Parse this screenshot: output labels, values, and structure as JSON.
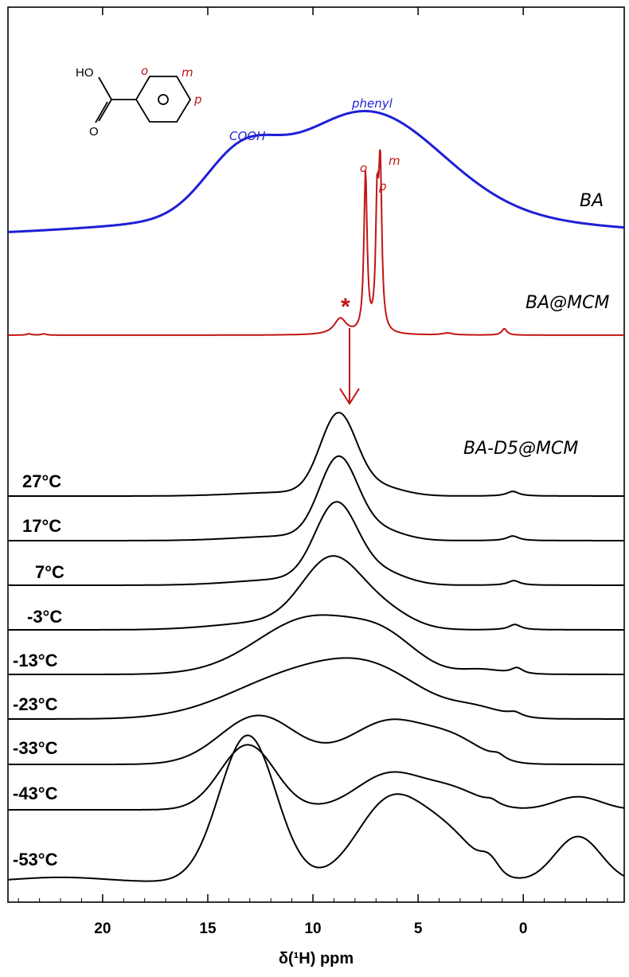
{
  "chart_data": {
    "type": "line",
    "xlabel": "δ(¹H) ppm",
    "xlim": [
      24.5,
      -4.8
    ],
    "x_reversed": true,
    "x_ticks": [
      "20",
      "15",
      "10",
      "5",
      "0"
    ],
    "colors": {
      "BA": "#1f1fd6",
      "BA@MCM": "#c01515",
      "BA-D5@MCM": "#000000"
    },
    "series_labels": {
      "BA": "BA",
      "BA@MCM": "BA@MCM",
      "BA-D5@MCM": "BA-D5@MCM"
    },
    "annotations": {
      "cooh": "COOH",
      "phenyl": "phenyl",
      "ortho": "o",
      "para": "p",
      "meta": "m",
      "asterisk": "*",
      "ho": "HO",
      "oxygen": "O",
      "ring_o": "o",
      "ring_m": "m",
      "ring_p": "p"
    },
    "series": [
      {
        "name": "BA",
        "peaks": [
          {
            "pos": 7.5,
            "amp": 0.78,
            "width": 3.6
          },
          {
            "pos": 13.5,
            "amp": 0.38,
            "width": 1.7
          },
          {
            "pos": 0,
            "amp": 0.0,
            "width": 1
          }
        ],
        "broad": {
          "amp": 0.18,
          "width": 9.5,
          "pos": 8.0
        }
      },
      {
        "name": "BA@MCM",
        "peaks": [
          {
            "pos": 7.5,
            "amp": 1.0,
            "width": 0.09
          },
          {
            "pos": 6.8,
            "amp": 1.0,
            "width": 0.09
          },
          {
            "pos": 6.95,
            "amp": 0.72,
            "width": 0.08
          },
          {
            "pos": 8.7,
            "amp": 0.1,
            "width": 0.35
          },
          {
            "pos": 0.9,
            "amp": 0.04,
            "width": 0.15
          },
          {
            "pos": 3.6,
            "amp": 0.012,
            "width": 0.3
          },
          {
            "pos": 23.5,
            "amp": 0.008,
            "width": 0.15
          },
          {
            "pos": 22.8,
            "amp": 0.008,
            "width": 0.15
          }
        ]
      }
    ],
    "temperatures": [
      {
        "label": "27°C",
        "peaks": [
          {
            "pos": 8.8,
            "amp": 1.0,
            "width": 0.85
          },
          {
            "pos": 7.0,
            "amp": 0.12,
            "width": 1.2
          },
          {
            "pos": 0.5,
            "amp": 0.06,
            "width": 0.35
          },
          {
            "pos": 11.0,
            "amp": 0.05,
            "width": 2.5
          }
        ]
      },
      {
        "label": "17°C",
        "peaks": [
          {
            "pos": 8.8,
            "amp": 1.0,
            "width": 0.9
          },
          {
            "pos": 7.0,
            "amp": 0.14,
            "width": 1.2
          },
          {
            "pos": 0.5,
            "amp": 0.06,
            "width": 0.35
          },
          {
            "pos": 11.0,
            "amp": 0.06,
            "width": 2.5
          }
        ]
      },
      {
        "label": "7°C",
        "peaks": [
          {
            "pos": 8.9,
            "amp": 1.0,
            "width": 1.0
          },
          {
            "pos": 6.8,
            "amp": 0.16,
            "width": 1.2
          },
          {
            "pos": 0.45,
            "amp": 0.06,
            "width": 0.35
          },
          {
            "pos": 11.0,
            "amp": 0.08,
            "width": 2.5
          }
        ]
      },
      {
        "label": "-3°C",
        "peaks": [
          {
            "pos": 9.1,
            "amp": 0.88,
            "width": 1.4
          },
          {
            "pos": 6.6,
            "amp": 0.22,
            "width": 1.3
          },
          {
            "pos": 0.4,
            "amp": 0.07,
            "width": 0.35
          },
          {
            "pos": 12.0,
            "amp": 0.1,
            "width": 2.5
          }
        ]
      },
      {
        "label": "-13°C",
        "peaks": [
          {
            "pos": 10.0,
            "amp": 0.75,
            "width": 2.6
          },
          {
            "pos": 6.5,
            "amp": 0.3,
            "width": 1.5
          },
          {
            "pos": 0.3,
            "amp": 0.08,
            "width": 0.35
          },
          {
            "pos": 2.0,
            "amp": 0.06,
            "width": 0.9
          }
        ]
      },
      {
        "label": "-23°C",
        "peaks": [
          {
            "pos": 11.0,
            "amp": 0.5,
            "width": 3.0
          },
          {
            "pos": 7.0,
            "amp": 0.48,
            "width": 2.4
          },
          {
            "pos": 0.4,
            "amp": 0.05,
            "width": 0.4
          },
          {
            "pos": 2.2,
            "amp": 0.1,
            "width": 1.2
          }
        ]
      },
      {
        "label": "-33°C",
        "peaks": [
          {
            "pos": 12.6,
            "amp": 0.58,
            "width": 1.8
          },
          {
            "pos": 6.3,
            "amp": 0.52,
            "width": 1.9
          },
          {
            "pos": 3.2,
            "amp": 0.22,
            "width": 1.3
          },
          {
            "pos": 1.2,
            "amp": 0.06,
            "width": 0.4
          }
        ]
      },
      {
        "label": "-43°C",
        "peaks": [
          {
            "pos": 13.1,
            "amp": 0.75,
            "width": 1.3
          },
          {
            "pos": 6.3,
            "amp": 0.42,
            "width": 1.6
          },
          {
            "pos": 3.3,
            "amp": 0.2,
            "width": 1.3
          },
          {
            "pos": 1.5,
            "amp": 0.05,
            "width": 0.4
          },
          {
            "pos": -2.6,
            "amp": 0.15,
            "width": 1.1
          }
        ]
      },
      {
        "label": "-53°C",
        "peaks": [
          {
            "pos": 22.0,
            "amp": 0.06,
            "width": 2.2
          }
        ]
      }
    ]
  }
}
